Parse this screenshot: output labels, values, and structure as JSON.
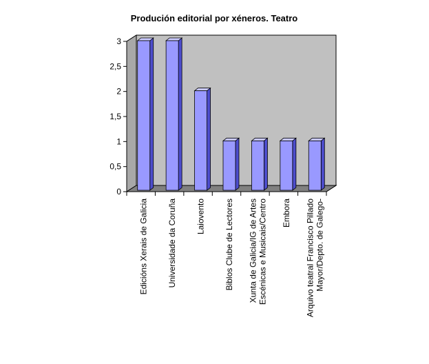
{
  "colors": {
    "plot_back": "#c0c0c0",
    "plot_floor": "#808080",
    "plot_side": "#a8a8a8",
    "bar_front": "#9999ff",
    "bar_top": "#ccccff",
    "bar_side": "#4d4dcc",
    "bar_stroke": "#000000",
    "axis": "#000000"
  },
  "chart_data": {
    "type": "bar",
    "title": "Produción editorial por xéneros. Teatro",
    "xlabel": "",
    "ylabel": "",
    "ylim": [
      0,
      3
    ],
    "yticks": [
      "0",
      "0,5",
      "1",
      "1,5",
      "2",
      "2,5",
      "3"
    ],
    "grid": false,
    "legend": "none",
    "categories": [
      [
        "Edicións Xerais de Galicia"
      ],
      [
        "Universidade da Coruña"
      ],
      [
        "Laiovento"
      ],
      [
        "Biblos Clube de Lectores"
      ],
      [
        "Xunta de Galicia/IG de Artes",
        "Escénicas e Musicais/Centro"
      ],
      [
        "Embora"
      ],
      [
        "Arquivo teatral Francisco Pillado",
        "Mayor/Depto. de Galego-"
      ]
    ],
    "values": [
      3,
      3,
      2,
      1,
      1,
      1,
      1
    ]
  }
}
